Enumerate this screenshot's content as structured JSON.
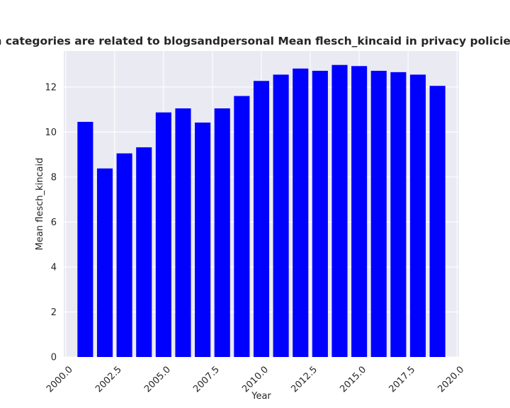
{
  "chart_data": {
    "type": "bar",
    "title": "when categories are related to blogsandpersonal Mean flesch_kincaid in privacy policies by Ye",
    "xlabel": "Year",
    "ylabel": "Mean flesch_kincaid",
    "x": [
      2001,
      2002,
      2003,
      2004,
      2005,
      2006,
      2007,
      2008,
      2009,
      2010,
      2011,
      2012,
      2013,
      2014,
      2015,
      2016,
      2017,
      2018,
      2019
    ],
    "values": [
      10.45,
      8.38,
      9.05,
      9.32,
      10.87,
      11.05,
      10.42,
      11.05,
      11.6,
      12.27,
      12.55,
      12.82,
      12.72,
      12.98,
      12.93,
      12.72,
      12.66,
      12.55,
      12.05
    ],
    "xlim": [
      1999.9,
      2020.1
    ],
    "ylim": [
      0,
      13.6
    ],
    "xticks": [
      "2000.0",
      "2002.5",
      "2005.0",
      "2007.5",
      "2010.0",
      "2012.5",
      "2015.0",
      "2017.5",
      "2020.0"
    ],
    "yticks": [
      "0",
      "2",
      "4",
      "6",
      "8",
      "10",
      "12"
    ],
    "bar_color": "#0000ff",
    "grid": true,
    "background": "#eaeaf2"
  }
}
